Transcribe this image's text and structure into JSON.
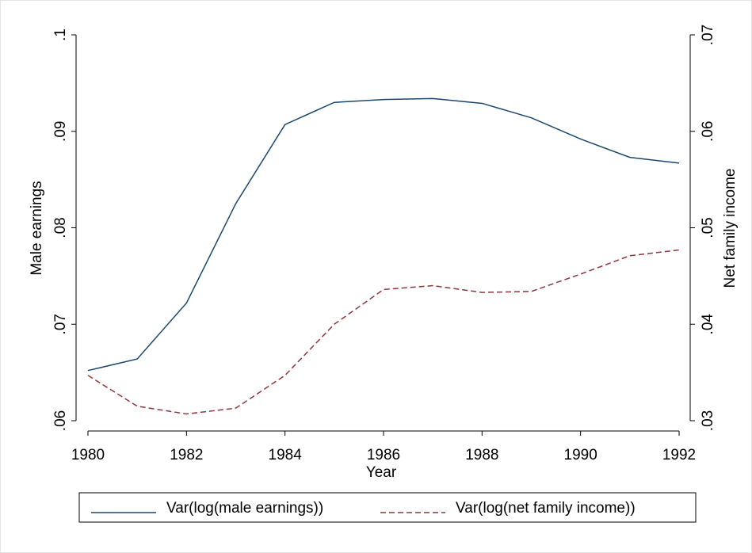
{
  "chart_data": {
    "type": "line",
    "x_label": "Year",
    "y_label": "Male earnings",
    "y2_label": "Net family income",
    "x": [
      1980,
      1981,
      1982,
      1983,
      1984,
      1985,
      1986,
      1987,
      1988,
      1989,
      1990,
      1991,
      1992
    ],
    "xlim": [
      1980,
      1992
    ],
    "xticks": [
      1980,
      1982,
      1984,
      1986,
      1988,
      1990,
      1992
    ],
    "ylim": [
      0.06,
      0.1
    ],
    "yticks": [
      {
        "value": 0.06,
        "label": ".06"
      },
      {
        "value": 0.07,
        "label": ".07"
      },
      {
        "value": 0.08,
        "label": ".08"
      },
      {
        "value": 0.09,
        "label": ".09"
      },
      {
        "value": 0.1,
        "label": ".1"
      }
    ],
    "y2lim": [
      0.03,
      0.07
    ],
    "y2ticks": [
      {
        "value": 0.03,
        "label": ".03"
      },
      {
        "value": 0.04,
        "label": ".04"
      },
      {
        "value": 0.05,
        "label": ".05"
      },
      {
        "value": 0.06,
        "label": ".06"
      },
      {
        "value": 0.07,
        "label": ".07"
      }
    ],
    "legend": "bottom",
    "series": [
      {
        "name": "Var(log(male earnings))",
        "color": "#1a476f",
        "dash": "solid",
        "values": [
          0.0652,
          0.0664,
          0.0722,
          0.0825,
          0.0907,
          0.093,
          0.0933,
          0.0934,
          0.0929,
          0.0914,
          0.0892,
          0.0873,
          0.0867
        ]
      },
      {
        "name": "Var(log(net family income))",
        "color": "#90353b",
        "dash": "dashed",
        "axis": "y2",
        "values": [
          0.0347,
          0.0315,
          0.0307,
          0.0313,
          0.0347,
          0.04,
          0.0436,
          0.044,
          0.0433,
          0.0434,
          0.0452,
          0.0471,
          0.0477
        ]
      }
    ]
  }
}
